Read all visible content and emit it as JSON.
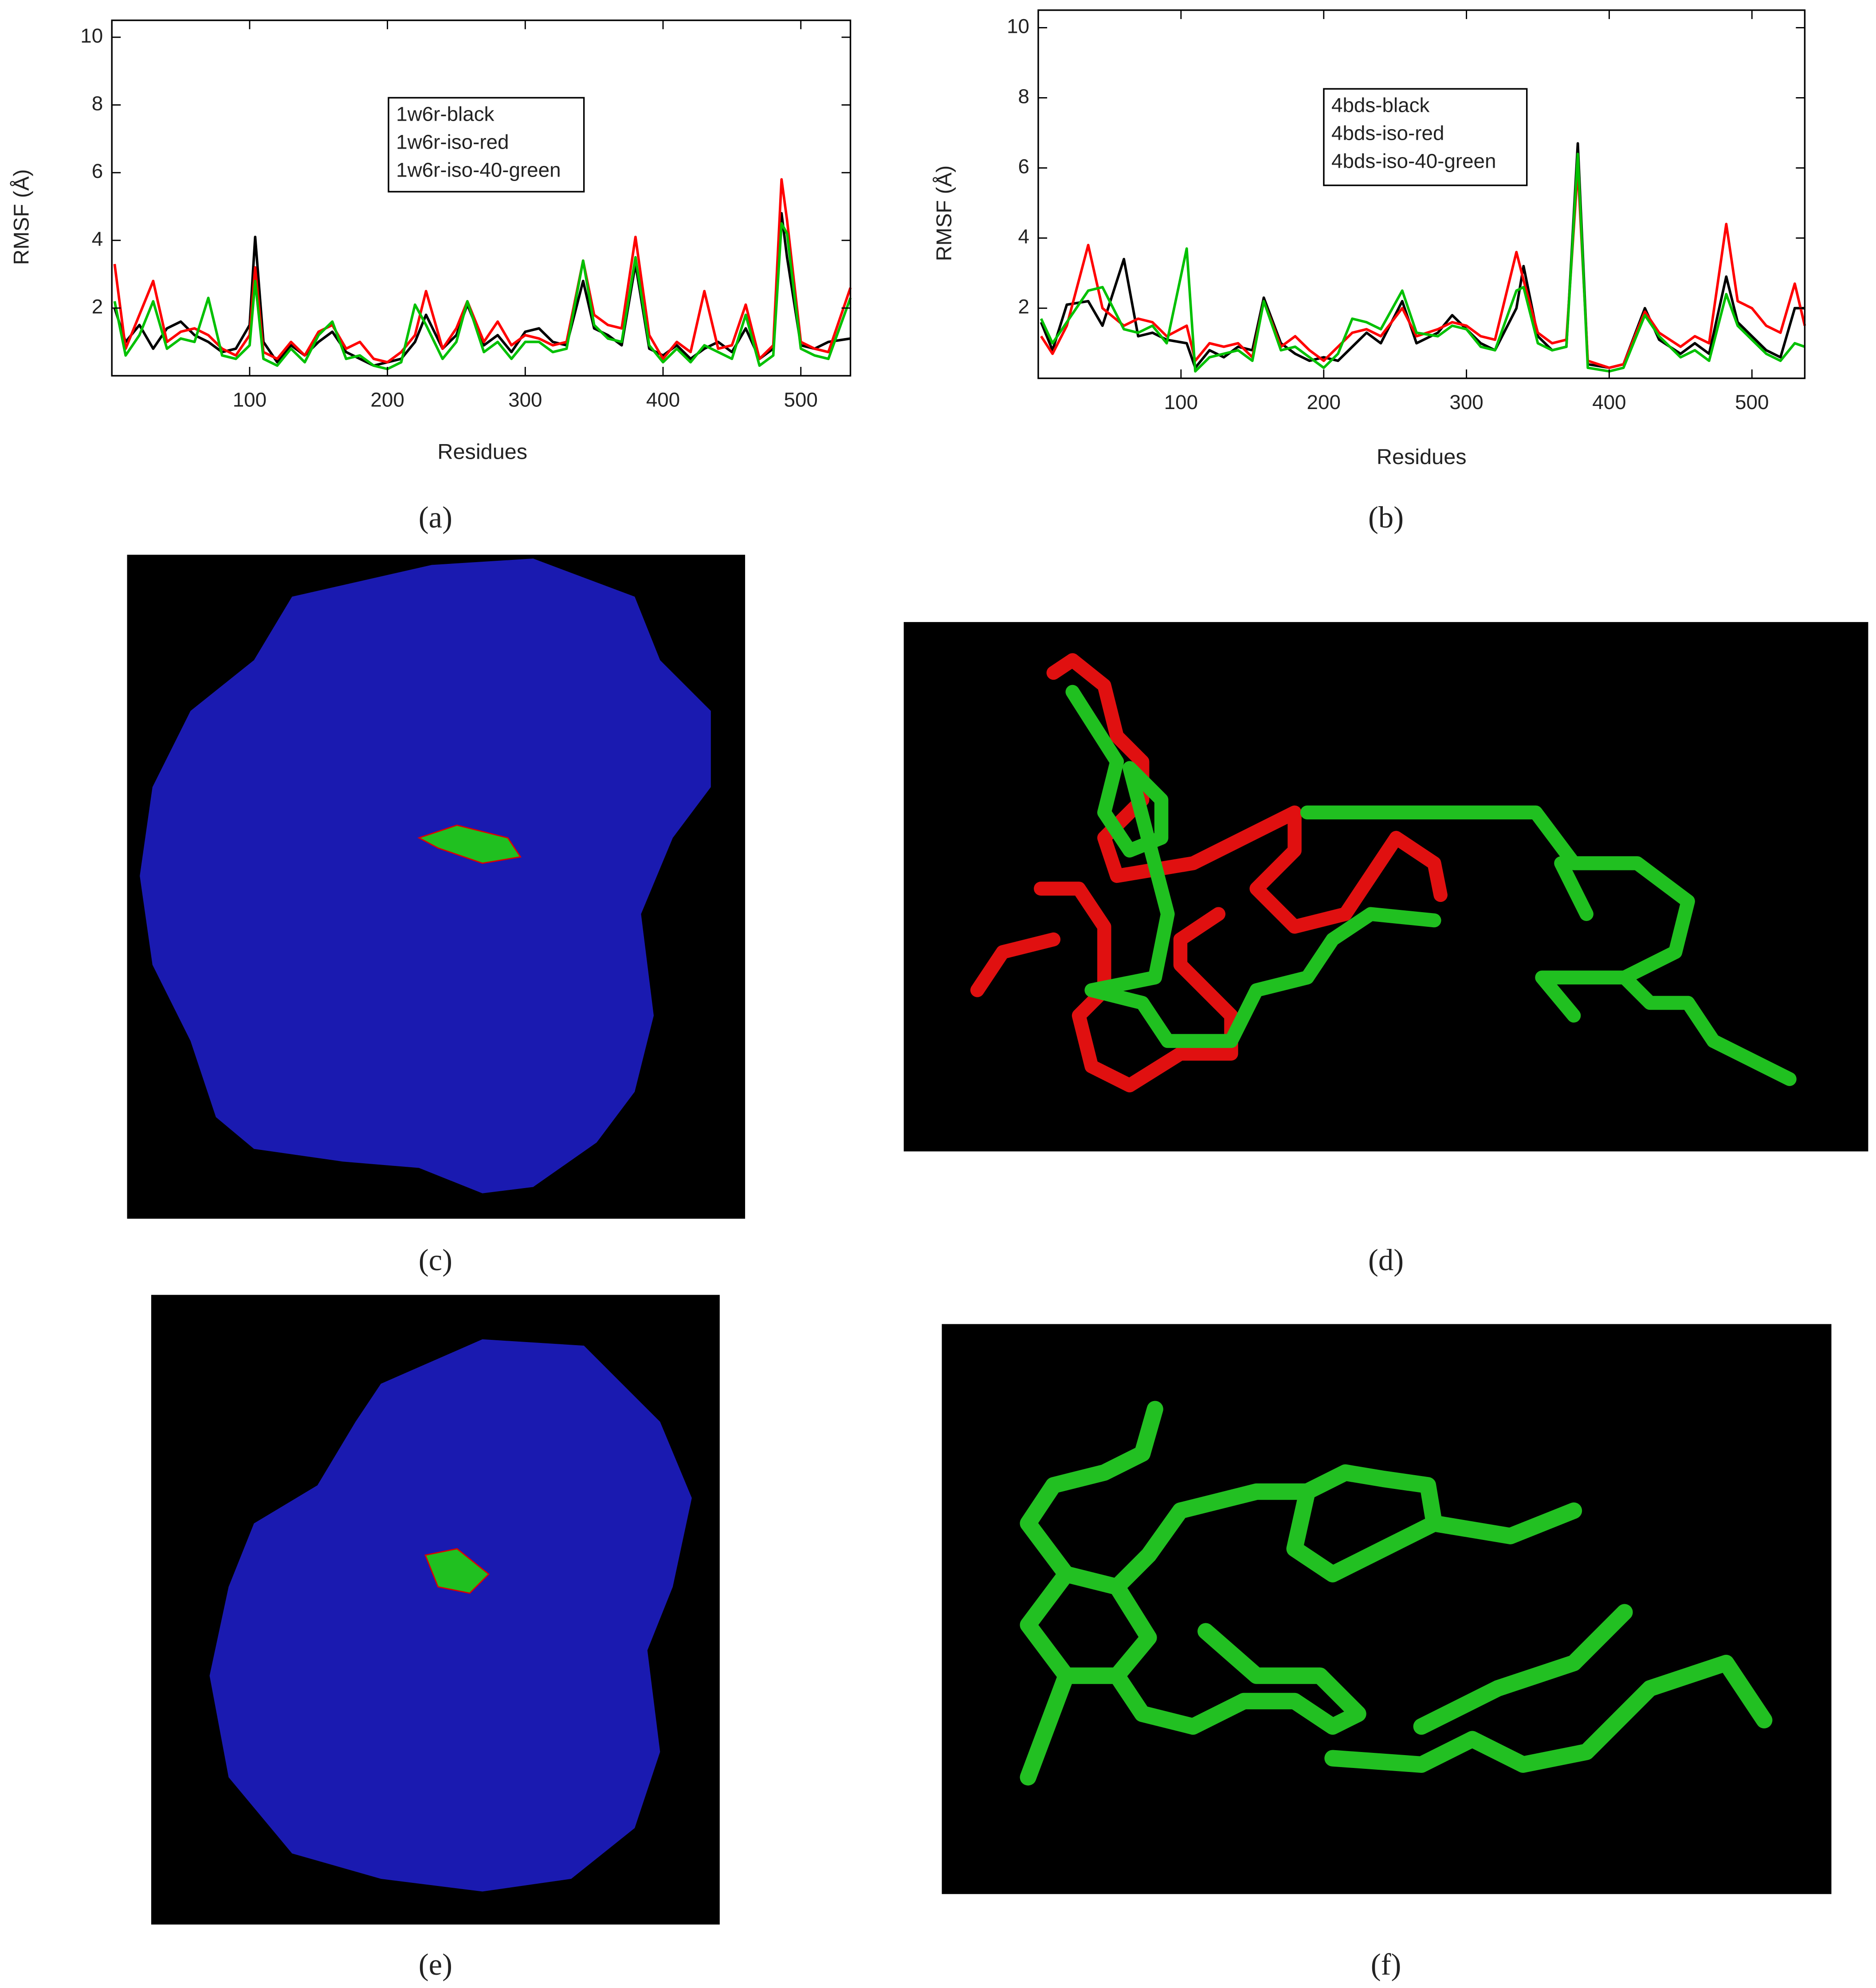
{
  "chart_data": [
    {
      "type": "line",
      "x_label": "Residues",
      "y_label": "RMSF (Å)",
      "x": [
        2,
        10,
        20,
        30,
        40,
        50,
        60,
        70,
        80,
        90,
        100,
        104,
        110,
        120,
        130,
        140,
        150,
        160,
        170,
        180,
        190,
        200,
        210,
        220,
        228,
        240,
        250,
        258,
        270,
        280,
        290,
        300,
        310,
        320,
        330,
        342,
        350,
        360,
        370,
        380,
        390,
        400,
        410,
        420,
        430,
        440,
        450,
        460,
        470,
        480,
        486,
        490,
        500,
        510,
        520,
        536
      ],
      "series": [
        {
          "name": "1w6r-black",
          "color": "#000000",
          "values": [
            2.0,
            1.0,
            1.5,
            0.8,
            1.4,
            1.6,
            1.2,
            1.0,
            0.7,
            0.8,
            1.5,
            4.1,
            1.0,
            0.4,
            0.9,
            0.6,
            1.0,
            1.3,
            0.7,
            0.5,
            0.3,
            0.4,
            0.5,
            1.0,
            1.8,
            0.8,
            1.2,
            2.1,
            0.9,
            1.2,
            0.7,
            1.3,
            1.4,
            1.0,
            0.9,
            2.8,
            1.4,
            1.2,
            0.9,
            3.3,
            0.8,
            0.6,
            0.9,
            0.5,
            0.8,
            1.0,
            0.7,
            1.4,
            0.5,
            0.8,
            4.8,
            3.5,
            0.9,
            0.8,
            1.0,
            1.1
          ]
        },
        {
          "name": "1w6r-iso-red",
          "color": "#ff0000",
          "values": [
            3.3,
            0.8,
            1.8,
            2.8,
            1.0,
            1.3,
            1.4,
            1.2,
            0.8,
            0.6,
            1.2,
            3.2,
            0.7,
            0.5,
            1.0,
            0.6,
            1.3,
            1.5,
            0.8,
            1.0,
            0.5,
            0.4,
            0.7,
            1.2,
            2.5,
            0.8,
            1.4,
            2.2,
            1.0,
            1.6,
            0.9,
            1.2,
            1.1,
            0.9,
            1.0,
            3.4,
            1.8,
            1.5,
            1.4,
            4.1,
            1.2,
            0.5,
            1.0,
            0.7,
            2.5,
            0.8,
            0.9,
            2.1,
            0.5,
            0.9,
            5.8,
            4.6,
            1.0,
            0.8,
            0.7,
            2.6
          ]
        },
        {
          "name": "1w6r-iso-40-green",
          "color": "#00c000",
          "values": [
            2.2,
            0.6,
            1.2,
            2.2,
            0.8,
            1.1,
            1.0,
            2.3,
            0.6,
            0.5,
            0.9,
            2.8,
            0.5,
            0.3,
            0.8,
            0.4,
            1.2,
            1.6,
            0.5,
            0.6,
            0.3,
            0.2,
            0.4,
            2.1,
            1.5,
            0.5,
            1.0,
            2.2,
            0.7,
            1.0,
            0.5,
            1.0,
            1.0,
            0.7,
            0.8,
            3.4,
            1.5,
            1.1,
            1.0,
            3.5,
            0.9,
            0.4,
            0.8,
            0.4,
            0.9,
            0.7,
            0.5,
            1.8,
            0.3,
            0.6,
            4.5,
            4.2,
            0.8,
            0.6,
            0.5,
            2.3
          ]
        }
      ],
      "xlim": [
        0,
        536
      ],
      "xticks": [
        100,
        200,
        300,
        400,
        500
      ],
      "ylim": [
        0,
        10.5
      ],
      "yticks": [
        2,
        4,
        6,
        8,
        10
      ]
    },
    {
      "type": "line",
      "x_label": "Residues",
      "y_label": "RMSF (Å)",
      "x": [
        2,
        10,
        20,
        35,
        45,
        60,
        70,
        80,
        90,
        104,
        110,
        120,
        130,
        140,
        150,
        158,
        170,
        180,
        190,
        200,
        210,
        220,
        230,
        240,
        255,
        265,
        280,
        290,
        300,
        310,
        320,
        335,
        340,
        350,
        360,
        370,
        378,
        385,
        400,
        410,
        425,
        435,
        450,
        460,
        470,
        482,
        490,
        500,
        510,
        520,
        530,
        537
      ],
      "series": [
        {
          "name": "4bds-black",
          "color": "#000000",
          "values": [
            1.6,
            0.8,
            2.1,
            2.2,
            1.5,
            3.4,
            1.2,
            1.3,
            1.1,
            1.0,
            0.3,
            0.8,
            0.6,
            0.9,
            0.8,
            2.3,
            1.0,
            0.7,
            0.5,
            0.6,
            0.5,
            0.9,
            1.3,
            1.0,
            2.2,
            1.0,
            1.3,
            1.8,
            1.4,
            1.0,
            0.8,
            2.0,
            3.2,
            1.2,
            0.8,
            0.9,
            6.7,
            0.4,
            0.3,
            0.4,
            2.0,
            1.1,
            0.7,
            1.0,
            0.7,
            2.9,
            1.6,
            1.2,
            0.8,
            0.6,
            2.0,
            2.0
          ]
        },
        {
          "name": "4bds-iso-red",
          "color": "#ff0000",
          "values": [
            1.2,
            0.7,
            1.5,
            3.8,
            2.0,
            1.5,
            1.7,
            1.6,
            1.2,
            1.5,
            0.5,
            1.0,
            0.9,
            1.0,
            0.6,
            2.2,
            0.9,
            1.2,
            0.8,
            0.5,
            0.9,
            1.3,
            1.4,
            1.2,
            2.0,
            1.2,
            1.4,
            1.6,
            1.5,
            1.2,
            1.1,
            3.6,
            2.8,
            1.3,
            1.0,
            1.1,
            6.0,
            0.5,
            0.3,
            0.4,
            1.9,
            1.3,
            0.9,
            1.2,
            1.0,
            4.4,
            2.2,
            2.0,
            1.5,
            1.3,
            2.7,
            1.5
          ]
        },
        {
          "name": "4bds-iso-40-green",
          "color": "#00c000",
          "values": [
            1.7,
            1.0,
            1.6,
            2.5,
            2.6,
            1.4,
            1.3,
            1.5,
            1.0,
            3.7,
            0.2,
            0.6,
            0.7,
            0.8,
            0.5,
            2.2,
            0.8,
            0.9,
            0.6,
            0.3,
            0.7,
            1.7,
            1.6,
            1.4,
            2.5,
            1.3,
            1.2,
            1.5,
            1.4,
            0.9,
            0.8,
            2.5,
            2.6,
            1.0,
            0.8,
            0.9,
            6.4,
            0.3,
            0.2,
            0.3,
            1.8,
            1.2,
            0.6,
            0.8,
            0.5,
            2.4,
            1.5,
            1.1,
            0.7,
            0.5,
            1.0,
            0.9
          ]
        }
      ],
      "xlim": [
        0,
        537
      ],
      "xticks": [
        100,
        200,
        300,
        400,
        500
      ],
      "ylim": [
        0,
        10.5
      ],
      "yticks": [
        2,
        4,
        6,
        8,
        10
      ]
    }
  ],
  "panel_labels": [
    "(a)",
    "(b)",
    "(c)",
    "(d)",
    "(e)",
    "(f)"
  ]
}
